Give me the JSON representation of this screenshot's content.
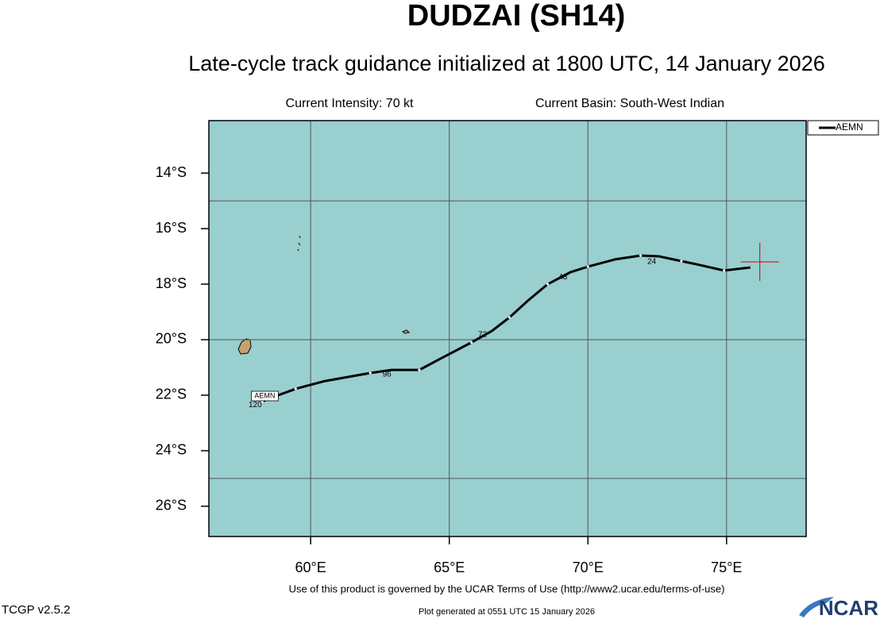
{
  "map": {
    "title": "DUDZAI (SH14)",
    "subtitle": "Late-cycle track guidance initialized at 1800 UTC, 14 January 2026",
    "current_intensity": "Current Intensity: 70 kt",
    "current_basin": "Current Basin: South-West Indian",
    "xlim": [
      56.33,
      77.87
    ],
    "ylim": [
      -27.09,
      -12.11
    ],
    "xticks": [
      {
        "value": 60,
        "label": "60°E"
      },
      {
        "value": 65,
        "label": "65°E"
      },
      {
        "value": 70,
        "label": "70°E"
      },
      {
        "value": 75,
        "label": "75°E"
      }
    ],
    "yticks": [
      {
        "value": -14,
        "label": "14°S"
      },
      {
        "value": -16,
        "label": "16°S"
      },
      {
        "value": -18,
        "label": "18°S"
      },
      {
        "value": -20,
        "label": "20°S"
      },
      {
        "value": -22,
        "label": "22°S"
      },
      {
        "value": -24,
        "label": "24°S"
      },
      {
        "value": -26,
        "label": "26°S"
      }
    ],
    "x_grid": [
      60,
      65,
      70,
      75
    ],
    "y_grid": [
      -15,
      -20,
      -25
    ],
    "ocean_color": "#99cfcf",
    "current_position": {
      "lon": 76.2,
      "lat": -17.2,
      "color": "#d00000"
    },
    "tracks": [
      {
        "name": "AEMN",
        "color": "#000000",
        "lon": [
          75.86,
          74.91,
          73.94,
          73.37,
          72.57,
          71.9,
          70.97,
          70.0,
          69.37,
          68.55,
          67.83,
          67.17,
          66.53,
          65.8,
          64.73,
          63.92,
          62.92,
          62.15,
          60.52,
          59.46,
          58.45,
          58.26
        ],
        "lat": [
          -17.4,
          -17.51,
          -17.29,
          -17.17,
          -17.0,
          -16.97,
          -17.11,
          -17.37,
          -17.57,
          -18.0,
          -18.6,
          -19.2,
          -19.69,
          -20.1,
          -20.66,
          -21.09,
          -21.09,
          -21.2,
          -21.49,
          -21.77,
          -22.14,
          -22.23
        ],
        "hour_labels": [
          {
            "text": "24",
            "lon": 72.3,
            "lat": -17.2
          },
          {
            "text": "48",
            "lon": 69.1,
            "lat": -17.75
          },
          {
            "text": "72",
            "lon": 66.2,
            "lat": -19.83
          },
          {
            "text": "96",
            "lon": 62.75,
            "lat": -21.25
          },
          {
            "text": "120",
            "lon": 58.0,
            "lat": -22.35
          }
        ]
      }
    ],
    "terms": "Use of this product is governed by the UCAR Terms of Use (http://www2.ucar.edu/terms-of-use)",
    "version": "TCGP v2.5.2",
    "generated": "Plot generated at 0551 UTC   15 January 2026",
    "logo": "NCAR"
  }
}
